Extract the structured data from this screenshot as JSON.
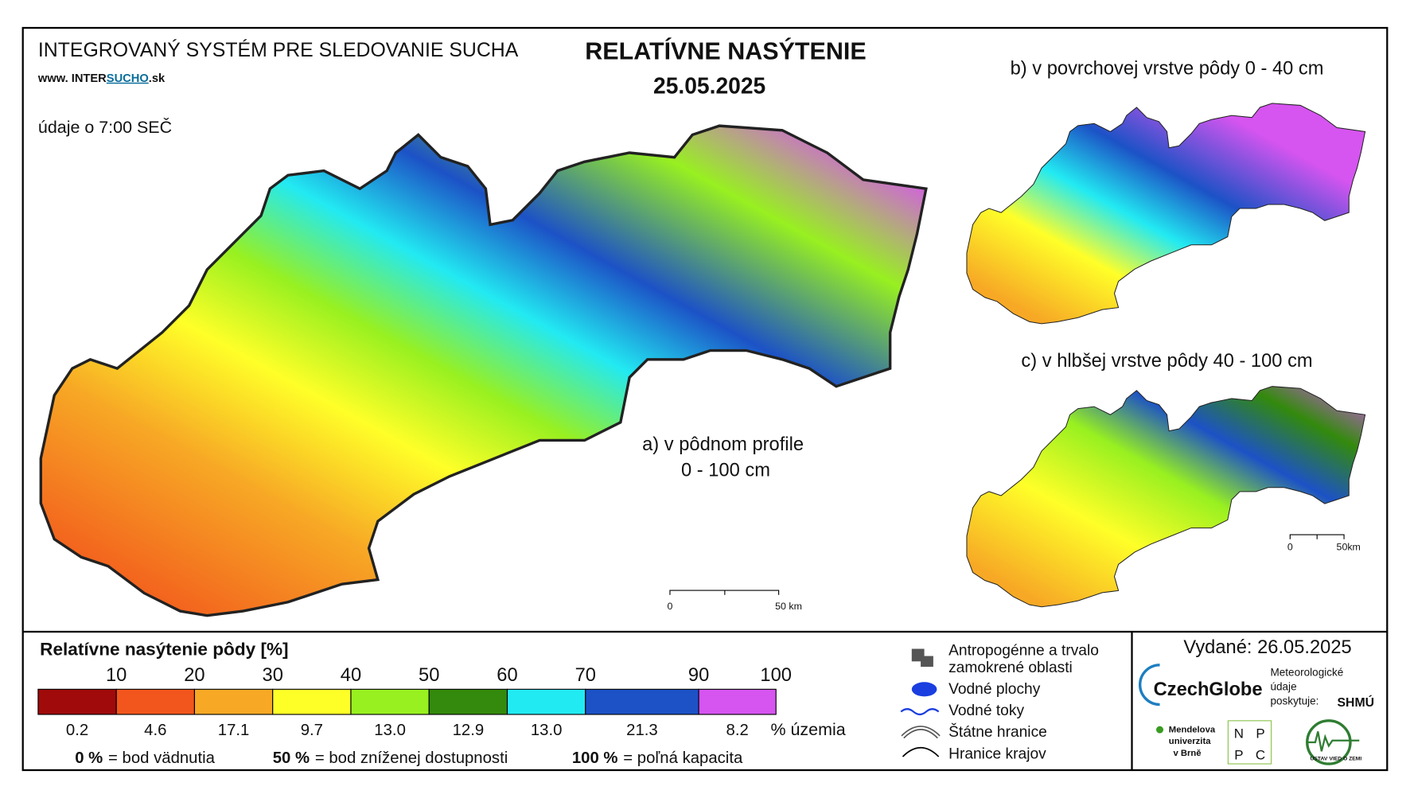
{
  "header": {
    "system": "INTEGROVANÝ SYSTÉM PRE SLEDOVANIE SUCHA",
    "web_prefix": "www. INTER",
    "web_highlight": "SUCHO",
    "web_suffix": ".sk",
    "time_note": "údaje o 7:00 SEČ",
    "title": "RELATÍVNE NASÝTENIE",
    "date": "25.05.2025"
  },
  "maps": [
    {
      "label": "a) v pôdnom profile",
      "sublabel": "0 - 100 cm",
      "scale_start": "0",
      "scale_end": "50 km"
    },
    {
      "label": "b) v povrchovej vrstve pôdy 0 - 40 cm"
    },
    {
      "label": "c) v hlbšej vrstve pôdy 40 - 100 cm",
      "scale_start": "0",
      "scale_end": "50km"
    }
  ],
  "legend": {
    "title": "Relatívne nasýtenie pôdy [%]",
    "thresholds": [
      10,
      20,
      30,
      40,
      50,
      60,
      70,
      90,
      100
    ],
    "classes": [
      {
        "color": "#a00a0a",
        "share": "0.2"
      },
      {
        "color": "#f2561c",
        "share": "4.6"
      },
      {
        "color": "#f7a825",
        "share": "17.1"
      },
      {
        "color": "#ffff28",
        "share": "9.7"
      },
      {
        "color": "#98f020",
        "share": "13.0"
      },
      {
        "color": "#338a0c",
        "share": "12.9"
      },
      {
        "color": "#22eaf2",
        "share": "13.0"
      },
      {
        "color": "#1c52c6",
        "share": "21.3"
      },
      {
        "color": "#d654f0",
        "share": "8.2"
      }
    ],
    "share_unit": "% územia",
    "notes": [
      {
        "value": "0 %",
        "text": "= bod vädnutia"
      },
      {
        "value": "50 %",
        "text": "= bod zníženej dostupnosti"
      },
      {
        "value": "100 %",
        "text": "= poľná kapacita"
      }
    ]
  },
  "symbols": [
    "Antropogénne a trvalo",
    "zamokrené oblasti",
    "Vodné plochy",
    "Vodné toky",
    "Štátne hranice",
    "Hranice krajov"
  ],
  "issued": "Vydané: 26.05.2025",
  "logos": {
    "czechglobe": "CzechGlobe",
    "meteo": [
      "Meteorologické",
      "údaje",
      "poskytuje:"
    ],
    "shmu": "SHMÚ",
    "mendelu": [
      "Mendelova",
      "univerzita",
      "v Brně"
    ],
    "nppc": [
      "N",
      "P",
      "P",
      "C"
    ],
    "uvz": "ÚSTAV VIED O ZEMI"
  }
}
